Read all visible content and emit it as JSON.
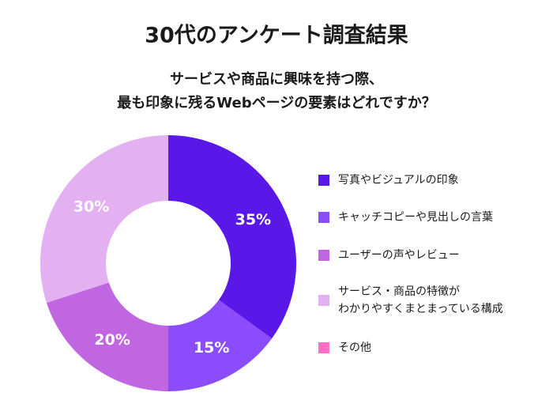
{
  "chart_data": {
    "type": "pie",
    "title": "30代のアンケート調査結果",
    "subtitle": [
      "サービスや商品に興味を持つ際、",
      "最も印象に残るWebページの要素はどれですか？"
    ],
    "categories": [
      "写真やビジュアルの印象",
      "キャッチコピーや見出しの言葉",
      "ユーザーの声やレビュー",
      "サービス・商品の特徴が\nわかりやすくまとまっている構成",
      "その他"
    ],
    "values": [
      35,
      15,
      20,
      30,
      0
    ],
    "value_labels": [
      "35%",
      "15%",
      "20%",
      "30%",
      null
    ],
    "colors": [
      "#5a18e8",
      "#8b4cfb",
      "#c066e0",
      "#e3b0f2",
      "#ff6ec7"
    ],
    "donut": true
  }
}
